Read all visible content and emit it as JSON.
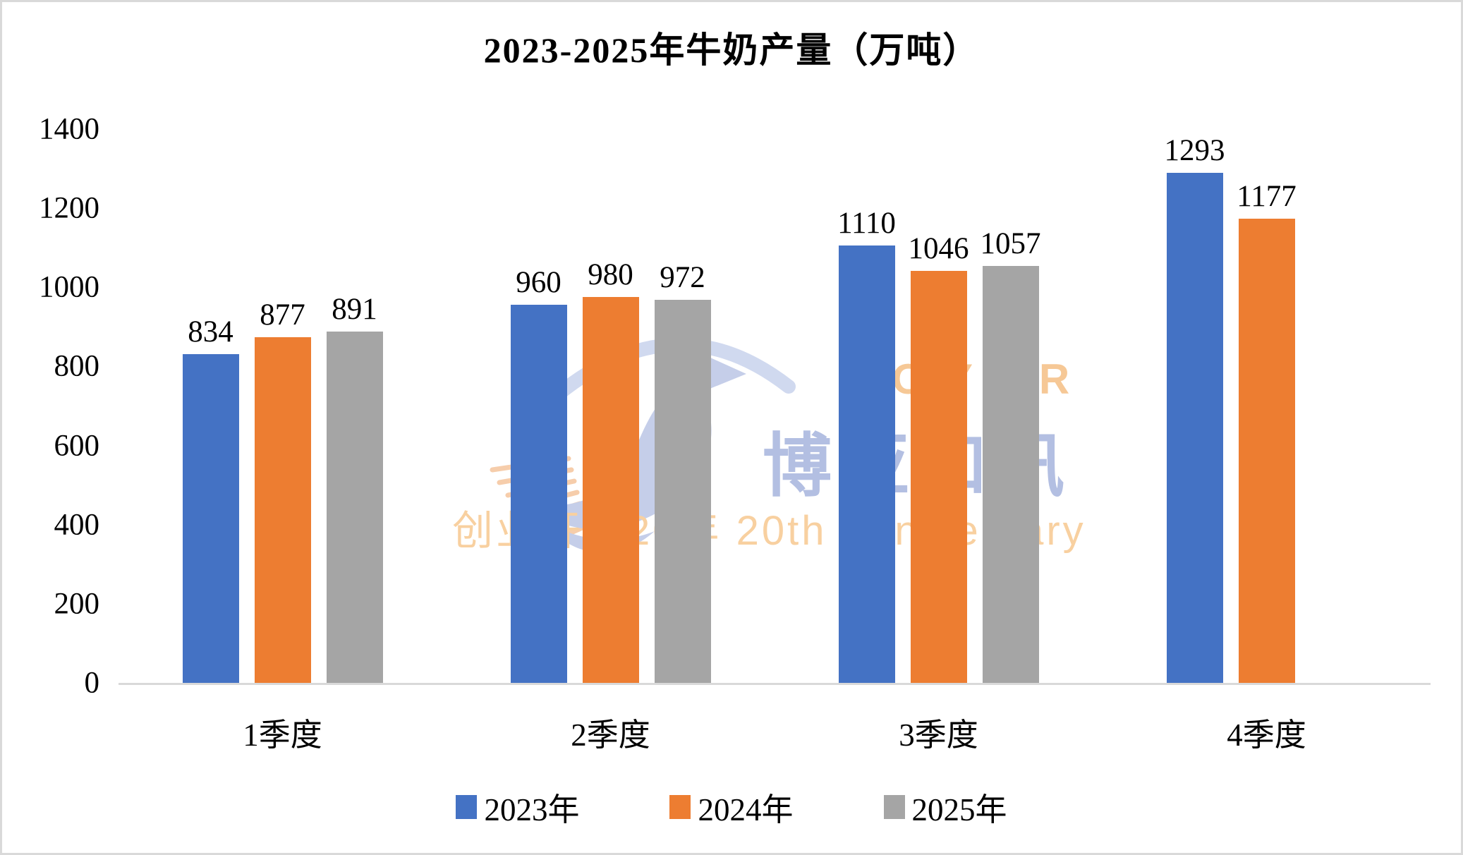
{
  "window": {
    "background": "#ffffff",
    "border_color": "#d9d9d9"
  },
  "chart_data": {
    "type": "bar",
    "title": "2023-2025年牛奶产量（万吨）",
    "categories": [
      "1季度",
      "2季度",
      "3季度",
      "4季度"
    ],
    "series": [
      {
        "name": "2023年",
        "color": "#4472C4",
        "values": [
          834,
          960,
          1110,
          1293
        ]
      },
      {
        "name": "2024年",
        "color": "#ED7D31",
        "values": [
          877,
          980,
          1046,
          1177
        ]
      },
      {
        "name": "2025年",
        "color": "#A5A5A5",
        "values": [
          891,
          972,
          1057,
          null
        ]
      }
    ],
    "xlabel": "",
    "ylabel": "",
    "ylim": [
      0,
      1400
    ],
    "yticks": [
      0,
      200,
      400,
      600,
      800,
      1000,
      1200,
      1400
    ],
    "grid": false,
    "data_labels": true,
    "legend_position": "bottom",
    "axis_line_color": "#d9d9d9",
    "text_color": "#000000"
  },
  "watermark": {
    "brand_en": "BOYAR",
    "brand_cn": "博亚和讯",
    "tagline": "创业开拓20年 20th Anniversary",
    "colors": {
      "bird_body": "#bfc9e7",
      "bird_eye": "#f2e594",
      "stripes": "#f3b98b",
      "brand_en": "#f6c896",
      "brand_cn": "#b3bfe2",
      "tagline": "#f8d0a0"
    }
  }
}
